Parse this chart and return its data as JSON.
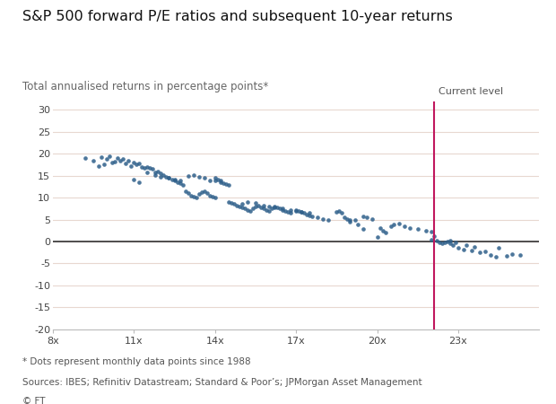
{
  "title": "S&P 500 forward P/E ratios and subsequent 10-year returns",
  "subtitle": "Total annualised returns in percentage points*",
  "xlabel_ticks": [
    8,
    11,
    14,
    17,
    20,
    23
  ],
  "ylim": [
    -20,
    32
  ],
  "xlim": [
    8,
    26
  ],
  "yticks": [
    -20,
    -15,
    -10,
    -5,
    0,
    5,
    10,
    15,
    20,
    25,
    30
  ],
  "current_level_x": 22.1,
  "current_level_label": "Current level",
  "dot_color": "#2e5f8a",
  "line_color": "#c0175d",
  "footnote1": "* Dots represent monthly data points since 1988",
  "footnote2": "Sources: IBES; Refinitiv Datastream; Standard & Poor’s; JPMorgan Asset Management",
  "footnote3": "© FT",
  "grid_color": "#e8d8d0",
  "zero_line_color": "#333333",
  "background_color": "#ffffff",
  "scatter_data": [
    [
      9.2,
      19.0
    ],
    [
      9.5,
      18.5
    ],
    [
      9.7,
      17.2
    ],
    [
      9.8,
      19.2
    ],
    [
      9.9,
      17.5
    ],
    [
      10.0,
      18.8
    ],
    [
      10.1,
      19.5
    ],
    [
      10.2,
      18.0
    ],
    [
      10.3,
      18.2
    ],
    [
      10.4,
      19.0
    ],
    [
      10.5,
      18.5
    ],
    [
      10.6,
      18.8
    ],
    [
      10.7,
      17.8
    ],
    [
      10.8,
      18.5
    ],
    [
      10.9,
      17.2
    ],
    [
      11.0,
      18.0
    ],
    [
      11.1,
      17.5
    ],
    [
      11.2,
      17.8
    ],
    [
      11.3,
      17.0
    ],
    [
      11.4,
      16.8
    ],
    [
      11.5,
      17.0
    ],
    [
      11.6,
      16.8
    ],
    [
      11.7,
      16.5
    ],
    [
      11.8,
      15.8
    ],
    [
      11.9,
      16.0
    ],
    [
      12.0,
      15.5
    ],
    [
      12.1,
      15.2
    ],
    [
      12.2,
      14.8
    ],
    [
      12.3,
      14.5
    ],
    [
      12.4,
      14.2
    ],
    [
      12.5,
      14.0
    ],
    [
      12.6,
      13.5
    ],
    [
      12.7,
      13.2
    ],
    [
      12.8,
      12.8
    ],
    [
      11.0,
      14.2
    ],
    [
      11.2,
      13.5
    ],
    [
      11.5,
      15.8
    ],
    [
      11.8,
      15.2
    ],
    [
      12.0,
      14.8
    ],
    [
      12.3,
      14.5
    ],
    [
      12.5,
      14.2
    ],
    [
      12.7,
      13.8
    ],
    [
      12.9,
      11.5
    ],
    [
      13.0,
      11.0
    ],
    [
      13.1,
      10.5
    ],
    [
      13.2,
      10.2
    ],
    [
      13.3,
      10.0
    ],
    [
      13.4,
      10.8
    ],
    [
      13.5,
      11.2
    ],
    [
      13.6,
      11.5
    ],
    [
      13.7,
      11.0
    ],
    [
      13.8,
      10.5
    ],
    [
      13.9,
      10.2
    ],
    [
      14.0,
      10.0
    ],
    [
      13.0,
      15.0
    ],
    [
      13.2,
      15.2
    ],
    [
      13.4,
      14.8
    ],
    [
      13.6,
      14.5
    ],
    [
      13.8,
      14.0
    ],
    [
      14.0,
      13.8
    ],
    [
      14.2,
      13.5
    ],
    [
      14.3,
      13.2
    ],
    [
      14.4,
      13.0
    ],
    [
      14.5,
      12.8
    ],
    [
      14.0,
      14.5
    ],
    [
      14.1,
      14.2
    ],
    [
      14.2,
      14.0
    ],
    [
      14.5,
      9.0
    ],
    [
      14.6,
      8.8
    ],
    [
      14.7,
      8.5
    ],
    [
      14.8,
      8.2
    ],
    [
      14.9,
      8.0
    ],
    [
      15.0,
      7.8
    ],
    [
      15.1,
      7.5
    ],
    [
      15.2,
      7.2
    ],
    [
      15.3,
      7.0
    ],
    [
      15.4,
      7.5
    ],
    [
      15.5,
      8.0
    ],
    [
      15.6,
      8.2
    ],
    [
      15.7,
      7.8
    ],
    [
      15.8,
      7.5
    ],
    [
      15.9,
      7.2
    ],
    [
      16.0,
      7.0
    ],
    [
      16.1,
      7.5
    ],
    [
      16.2,
      8.0
    ],
    [
      16.3,
      7.8
    ],
    [
      16.4,
      7.5
    ],
    [
      16.5,
      7.2
    ],
    [
      16.6,
      7.0
    ],
    [
      16.7,
      6.8
    ],
    [
      16.8,
      6.5
    ],
    [
      15.0,
      8.5
    ],
    [
      15.2,
      9.0
    ],
    [
      15.5,
      8.8
    ],
    [
      15.8,
      8.2
    ],
    [
      16.0,
      8.0
    ],
    [
      16.2,
      7.8
    ],
    [
      16.5,
      7.5
    ],
    [
      16.8,
      7.2
    ],
    [
      17.0,
      7.2
    ],
    [
      17.1,
      7.0
    ],
    [
      17.2,
      6.8
    ],
    [
      17.3,
      6.5
    ],
    [
      17.4,
      6.2
    ],
    [
      17.5,
      6.0
    ],
    [
      17.6,
      5.8
    ],
    [
      17.8,
      5.5
    ],
    [
      18.0,
      5.2
    ],
    [
      18.2,
      5.0
    ],
    [
      17.0,
      7.0
    ],
    [
      17.2,
      6.8
    ],
    [
      17.5,
      6.5
    ],
    [
      18.5,
      6.8
    ],
    [
      18.6,
      7.0
    ],
    [
      18.7,
      6.5
    ],
    [
      18.8,
      5.5
    ],
    [
      18.9,
      5.2
    ],
    [
      19.0,
      5.0
    ],
    [
      19.2,
      4.8
    ],
    [
      19.5,
      5.8
    ],
    [
      19.6,
      5.5
    ],
    [
      19.8,
      5.2
    ],
    [
      19.0,
      4.5
    ],
    [
      19.3,
      3.8
    ],
    [
      19.5,
      2.8
    ],
    [
      20.0,
      1.0
    ],
    [
      20.1,
      3.0
    ],
    [
      20.2,
      2.5
    ],
    [
      20.3,
      2.0
    ],
    [
      20.5,
      3.5
    ],
    [
      20.6,
      3.8
    ],
    [
      20.8,
      4.0
    ],
    [
      21.0,
      3.5
    ],
    [
      21.2,
      3.0
    ],
    [
      21.5,
      2.8
    ],
    [
      21.8,
      2.5
    ],
    [
      22.0,
      2.2
    ],
    [
      22.0,
      0.5
    ],
    [
      22.1,
      1.2
    ],
    [
      22.2,
      0.2
    ],
    [
      22.3,
      -0.2
    ],
    [
      22.4,
      -0.5
    ],
    [
      22.5,
      -0.3
    ],
    [
      22.6,
      0.0
    ],
    [
      22.7,
      0.2
    ],
    [
      22.7,
      -0.5
    ],
    [
      22.8,
      -0.8
    ],
    [
      22.9,
      -0.3
    ],
    [
      23.0,
      -1.5
    ],
    [
      23.2,
      -1.8
    ],
    [
      23.3,
      -0.8
    ],
    [
      23.5,
      -2.0
    ],
    [
      23.6,
      -1.2
    ],
    [
      23.8,
      -2.5
    ],
    [
      24.0,
      -2.2
    ],
    [
      24.2,
      -3.0
    ],
    [
      24.4,
      -3.5
    ],
    [
      24.5,
      -1.5
    ],
    [
      24.8,
      -3.2
    ],
    [
      25.0,
      -2.8
    ],
    [
      25.3,
      -3.0
    ]
  ]
}
